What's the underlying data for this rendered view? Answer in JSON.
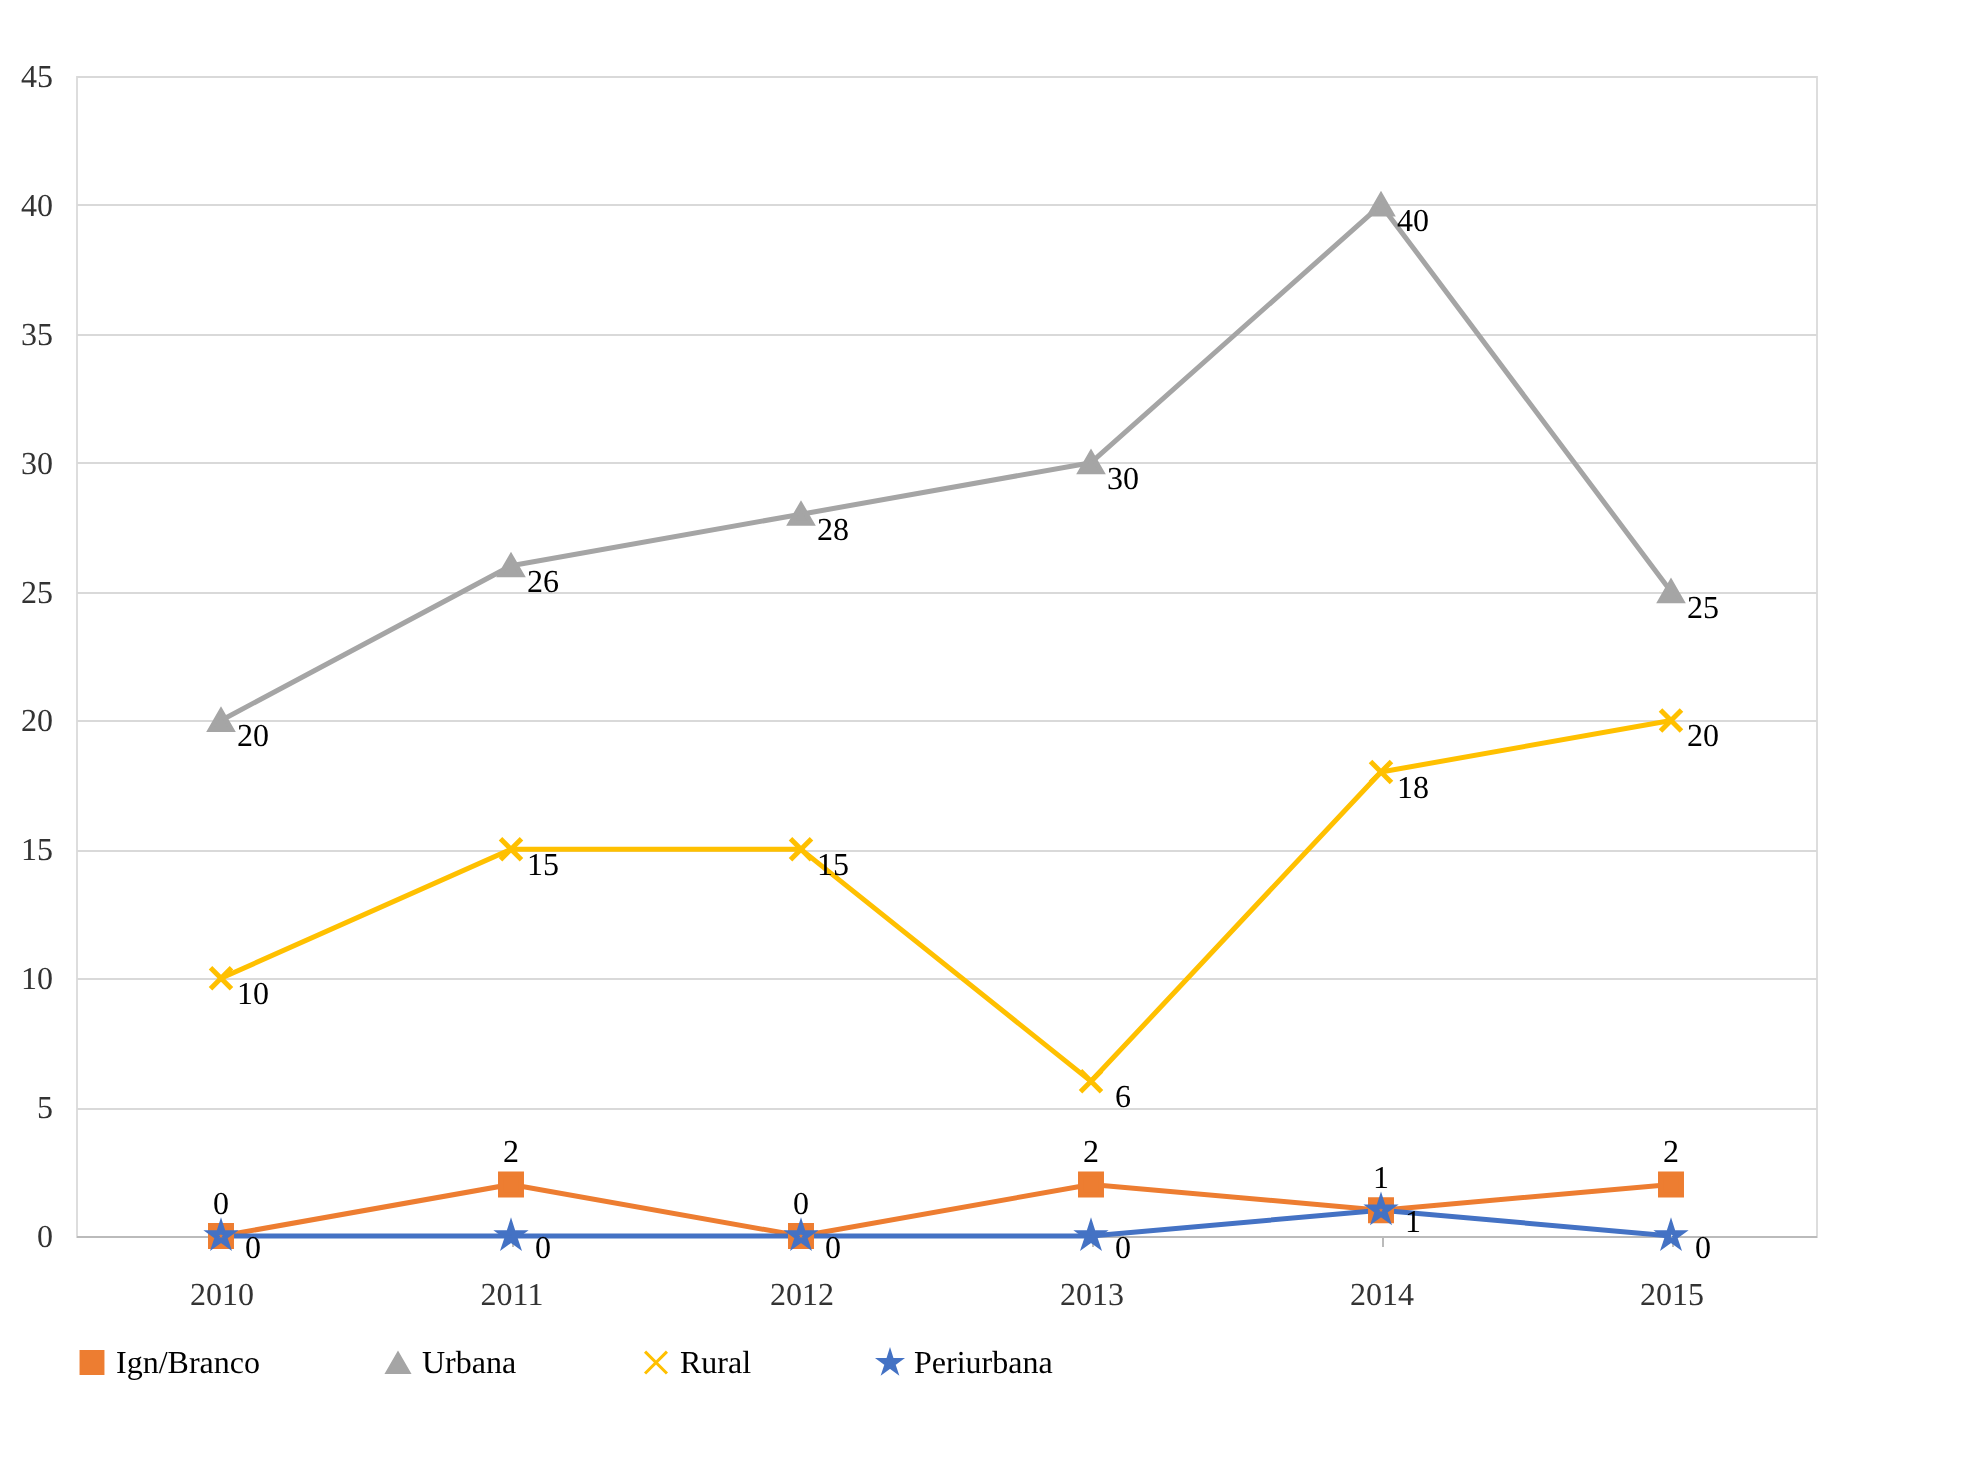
{
  "chart_data": {
    "type": "line",
    "categories": [
      "2010",
      "2011",
      "2012",
      "2013",
      "2014",
      "2015"
    ],
    "series": [
      {
        "name": "Ign/Branco",
        "color": "#ed7d31",
        "marker": "square",
        "values": [
          0,
          2,
          0,
          2,
          1,
          2
        ]
      },
      {
        "name": "Urbana",
        "color": "#a5a5a5",
        "marker": "triangle",
        "values": [
          20,
          26,
          28,
          30,
          40,
          25
        ]
      },
      {
        "name": "Rural",
        "color": "#ffc000",
        "marker": "cross",
        "values": [
          10,
          15,
          15,
          6,
          18,
          20
        ]
      },
      {
        "name": "Periurbana",
        "color": "#4472c4",
        "marker": "star",
        "values": [
          0,
          0,
          0,
          0,
          1,
          0
        ]
      }
    ],
    "ylim": [
      0,
      45
    ],
    "yticks": [
      0,
      5,
      10,
      15,
      20,
      25,
      30,
      35,
      40,
      45
    ],
    "grid": "y",
    "legend": "bottom",
    "data_labels": true,
    "line_style": "solid"
  }
}
